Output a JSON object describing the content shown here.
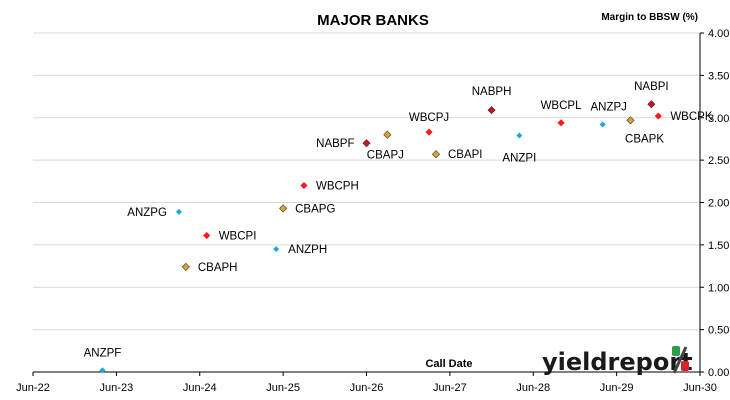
{
  "chart_data": {
    "type": "scatter",
    "title": "MAJOR BANKS",
    "ylabel": "Margin to BBSW (%)",
    "xlabel": "Call Date",
    "ylim": [
      0,
      4
    ],
    "yticks": [
      "0.00",
      "0.50",
      "1.00",
      "1.50",
      "2.00",
      "2.50",
      "3.00",
      "3.50",
      "4.00"
    ],
    "xlim": [
      "2022-06",
      "2030-06"
    ],
    "xticks": [
      "Jun-22",
      "Jun-23",
      "Jun-24",
      "Jun-25",
      "Jun-26",
      "Jun-27",
      "Jun-28",
      "Jun-29",
      "Jun-30"
    ],
    "grid": "horizontal",
    "y_axis_side": "right",
    "marker_colors": {
      "ANZ": "#19a9e0",
      "CBA": "#e0a52a",
      "NAB": "#c8141e",
      "WBC": "#ff1a1a"
    },
    "points": [
      {
        "name": "ANZPF",
        "bank": "ANZ",
        "x": "2023-04",
        "y": 0.02
      },
      {
        "name": "CBAPH",
        "bank": "CBA",
        "x": "2024-04",
        "y": 1.24
      },
      {
        "name": "WBCPI",
        "bank": "WBC",
        "x": "2024-07",
        "y": 1.61
      },
      {
        "name": "ANZPG",
        "bank": "ANZ",
        "x": "2024-03",
        "y": 1.89
      },
      {
        "name": "ANZPH",
        "bank": "ANZ",
        "x": "2025-05",
        "y": 1.45
      },
      {
        "name": "CBAPG",
        "bank": "CBA",
        "x": "2025-06",
        "y": 1.93
      },
      {
        "name": "WBCPH",
        "bank": "WBC",
        "x": "2025-09",
        "y": 2.2
      },
      {
        "name": "NABPF",
        "bank": "NAB",
        "x": "2026-06",
        "y": 2.7
      },
      {
        "name": "CBAPJ",
        "bank": "CBA",
        "x": "2026-09",
        "y": 2.8
      },
      {
        "name": "WBCPJ",
        "bank": "WBC",
        "x": "2027-03",
        "y": 2.83
      },
      {
        "name": "CBAPI",
        "bank": "CBA",
        "x": "2027-04",
        "y": 2.57
      },
      {
        "name": "NABPH",
        "bank": "NAB",
        "x": "2027-12",
        "y": 3.09
      },
      {
        "name": "ANZPI",
        "bank": "ANZ",
        "x": "2028-04",
        "y": 2.79
      },
      {
        "name": "WBCPL",
        "bank": "WBC",
        "x": "2028-10",
        "y": 2.94
      },
      {
        "name": "ANZPJ",
        "bank": "ANZ",
        "x": "2029-04",
        "y": 2.92
      },
      {
        "name": "CBAPK",
        "bank": "CBA",
        "x": "2029-08",
        "y": 2.97
      },
      {
        "name": "NABPI",
        "bank": "NAB",
        "x": "2029-11",
        "y": 3.16
      },
      {
        "name": "WBCPK",
        "bank": "WBC",
        "x": "2029-12",
        "y": 3.02
      }
    ]
  },
  "logo": {
    "text": "yieldreport",
    "symbol": "%"
  }
}
